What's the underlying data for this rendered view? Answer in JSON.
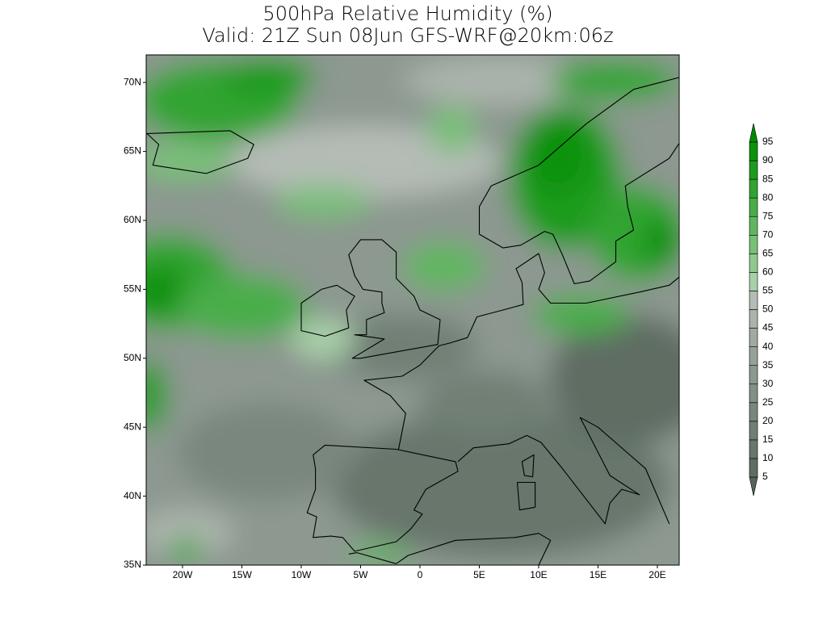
{
  "title": "500hPa Relative Humidity (%)",
  "subtitle": "Valid: 21Z Sun 08Jun GFS-WRF@20km:06z",
  "map": {
    "lon_range": [
      -23.06,
      21.84
    ],
    "lat_range": [
      35,
      72
    ],
    "lat_ticks": [
      {
        "value": 35,
        "label": "35N"
      },
      {
        "value": 40,
        "label": "40N"
      },
      {
        "value": 45,
        "label": "45N"
      },
      {
        "value": 50,
        "label": "50N"
      },
      {
        "value": 55,
        "label": "55N"
      },
      {
        "value": 60,
        "label": "60N"
      },
      {
        "value": 65,
        "label": "65N"
      },
      {
        "value": 70,
        "label": "70N"
      }
    ],
    "lon_ticks": [
      {
        "value": -20,
        "label": "20W"
      },
      {
        "value": -15,
        "label": "15W"
      },
      {
        "value": -10,
        "label": "10W"
      },
      {
        "value": -5,
        "label": "5W"
      },
      0,
      {
        "value": 5,
        "label": "5E"
      },
      {
        "value": 10,
        "label": "10E"
      },
      {
        "value": 15,
        "label": "15E"
      },
      {
        "value": 20,
        "label": "20E"
      }
    ]
  },
  "colorbar": {
    "levels": [
      5,
      10,
      15,
      20,
      25,
      30,
      35,
      40,
      45,
      50,
      55,
      60,
      65,
      70,
      75,
      80,
      85,
      90,
      95
    ],
    "colors": [
      "#56645a",
      "#5f6d63",
      "#68766c",
      "#717f75",
      "#7a877e",
      "#838f87",
      "#8c9890",
      "#96a199",
      "#a0aaa2",
      "#aab3ac",
      "#b4bcb5",
      "#a8d0a8",
      "#90c890",
      "#78bf78",
      "#60b660",
      "#48ad48",
      "#30a430",
      "#1c9b1c",
      "#0c920c",
      "#008a00"
    ]
  }
}
